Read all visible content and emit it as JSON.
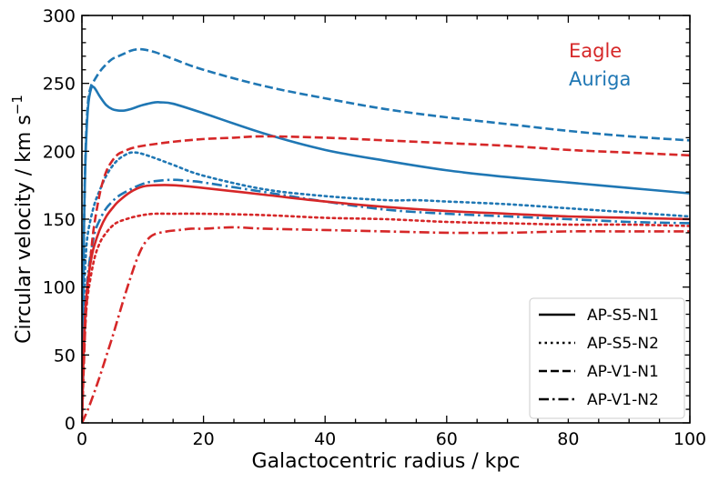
{
  "chart_data": {
    "type": "line",
    "title": "",
    "xlabel": "Galactocentric radius / kpc",
    "ylabel_main": "Circular velocity / km s",
    "ylabel_sup": "−1",
    "xlim": [
      0,
      100
    ],
    "ylim": [
      0,
      300
    ],
    "xticks": [
      0,
      20,
      40,
      60,
      80,
      100
    ],
    "xtick_labels": [
      "0",
      "20",
      "40",
      "60",
      "80",
      "100"
    ],
    "yticks": [
      0,
      50,
      100,
      150,
      200,
      250,
      300
    ],
    "ytick_labels": [
      "0",
      "50",
      "100",
      "150",
      "200",
      "250",
      "300"
    ],
    "grid": false,
    "annotations": [
      {
        "text": "Eagle",
        "color": "#d62728"
      },
      {
        "text": "Auriga",
        "color": "#1f77b4"
      }
    ],
    "colors": {
      "Eagle": "#d62728",
      "Auriga": "#1f77b4"
    },
    "legend": {
      "location": "lower-right",
      "entries": [
        {
          "label": "AP-S5-N1",
          "style": "solid"
        },
        {
          "label": "AP-S5-N2",
          "style": "dotted"
        },
        {
          "label": "AP-V1-N1",
          "style": "dashed"
        },
        {
          "label": "AP-V1-N2",
          "style": "dashdot"
        }
      ]
    },
    "series": [
      {
        "name": "Auriga AP-S5-N1",
        "simulation": "Auriga",
        "style": "solid",
        "x": [
          0,
          0.3,
          0.6,
          1,
          1.5,
          2,
          3,
          4,
          5,
          6,
          7,
          8,
          10,
          12,
          13,
          15,
          20,
          30,
          40,
          50,
          60,
          70,
          80,
          90,
          100
        ],
        "y": [
          0,
          130,
          195,
          232,
          246,
          247,
          240,
          234,
          231,
          230,
          230,
          231,
          234,
          236,
          236,
          235,
          228,
          213,
          201,
          193,
          186,
          181,
          177,
          173,
          169
        ]
      },
      {
        "name": "Auriga AP-S5-N2",
        "simulation": "Auriga",
        "style": "dotted",
        "x": [
          0,
          0.3,
          0.6,
          1,
          2,
          3,
          4,
          5,
          6,
          7,
          8,
          9,
          10,
          12,
          15,
          20,
          30,
          40,
          50,
          55,
          60,
          70,
          80,
          90,
          100
        ],
        "y": [
          0,
          85,
          120,
          140,
          160,
          172,
          182,
          189,
          194,
          197,
          199,
          199,
          198,
          195,
          190,
          182,
          172,
          167,
          164,
          164,
          163,
          161,
          158,
          155,
          152
        ]
      },
      {
        "name": "Auriga AP-V1-N1",
        "simulation": "Auriga",
        "style": "dashed",
        "x": [
          0,
          0.3,
          0.6,
          1,
          1.5,
          2,
          3,
          4,
          5,
          6,
          7,
          8,
          9,
          10,
          12,
          15,
          20,
          30,
          40,
          50,
          60,
          70,
          80,
          90,
          100
        ],
        "y": [
          0,
          130,
          200,
          236,
          248,
          252,
          259,
          264,
          268,
          270,
          272,
          274,
          275,
          275,
          273,
          268,
          260,
          248,
          239,
          231,
          225,
          220,
          215,
          211,
          208
        ]
      },
      {
        "name": "Auriga AP-V1-N2",
        "simulation": "Auriga",
        "style": "dashdot",
        "x": [
          0,
          0.5,
          1,
          2,
          3,
          4,
          5,
          6,
          8,
          10,
          12,
          15,
          18,
          20,
          30,
          40,
          50,
          60,
          70,
          80,
          90,
          100
        ],
        "y": [
          0,
          75,
          110,
          138,
          150,
          158,
          163,
          167,
          172,
          176,
          178,
          179,
          178,
          177,
          170,
          163,
          157,
          154,
          152,
          150,
          148,
          147
        ]
      },
      {
        "name": "Eagle AP-S5-N1",
        "simulation": "Eagle",
        "style": "solid",
        "x": [
          0,
          0.3,
          0.6,
          1,
          1.5,
          2,
          3,
          4,
          5,
          6,
          8,
          10,
          12,
          15,
          20,
          30,
          40,
          50,
          60,
          70,
          80,
          90,
          100
        ],
        "y": [
          0,
          55,
          85,
          105,
          120,
          130,
          143,
          152,
          158,
          163,
          170,
          174,
          175,
          175,
          173,
          168,
          163,
          159,
          156,
          154,
          152,
          151,
          150
        ]
      },
      {
        "name": "Eagle AP-S5-N2",
        "simulation": "Eagle",
        "style": "dotted",
        "x": [
          0,
          0.3,
          0.6,
          1,
          2,
          3,
          4,
          5,
          6,
          8,
          10,
          12,
          15,
          20,
          30,
          40,
          50,
          60,
          70,
          80,
          90,
          100
        ],
        "y": [
          0,
          45,
          75,
          95,
          120,
          133,
          140,
          145,
          148,
          151,
          153,
          154,
          154,
          154,
          153,
          151,
          150,
          148,
          147,
          146,
          146,
          145
        ]
      },
      {
        "name": "Eagle AP-V1-N1",
        "simulation": "Eagle",
        "style": "dashed",
        "x": [
          0,
          0.3,
          0.6,
          1,
          1.5,
          2,
          3,
          4,
          5,
          6,
          7,
          8,
          10,
          15,
          20,
          25,
          30,
          40,
          50,
          60,
          70,
          80,
          90,
          100
        ],
        "y": [
          0,
          40,
          75,
          100,
          125,
          145,
          170,
          185,
          193,
          198,
          200,
          202,
          204,
          207,
          209,
          210,
          211,
          210,
          208,
          206,
          204,
          201,
          199,
          197
        ]
      },
      {
        "name": "Eagle AP-V1-N2",
        "simulation": "Eagle",
        "style": "dashdot",
        "x": [
          0,
          1,
          2,
          3,
          4,
          5,
          6,
          7,
          8,
          9,
          10,
          11,
          12,
          14,
          16,
          18,
          20,
          25,
          30,
          40,
          50,
          60,
          70,
          80,
          90,
          100
        ],
        "y": [
          0,
          10,
          22,
          35,
          49,
          63,
          78,
          93,
          107,
          120,
          130,
          136,
          139,
          141,
          142,
          143,
          143,
          144,
          143,
          142,
          141,
          140,
          140,
          141,
          141,
          141
        ]
      }
    ]
  }
}
